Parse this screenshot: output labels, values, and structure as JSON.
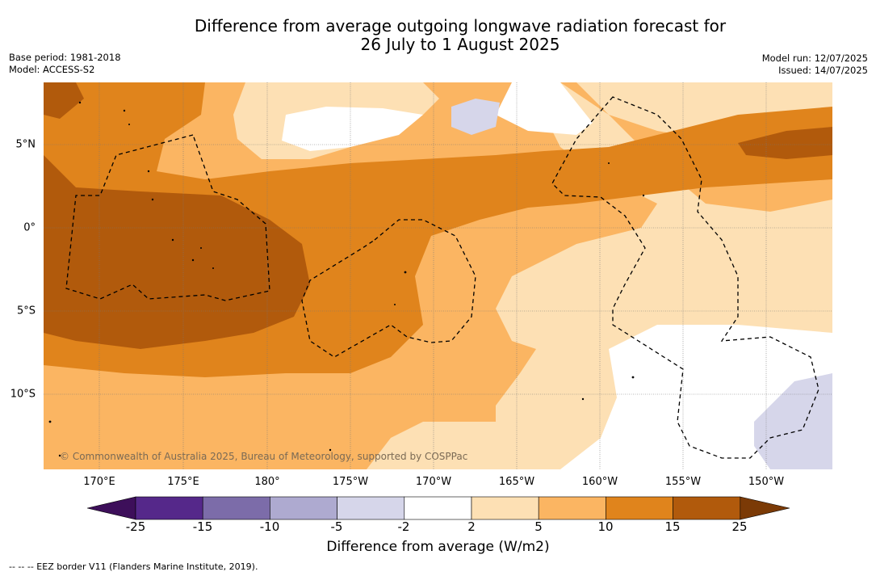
{
  "title_line1": "Difference from average outgoing longwave radiation forecast for",
  "title_line2": "26 July to 1 August 2025",
  "base_period": "Base period: 1981-2018",
  "model": "Model: ACCESS-S2",
  "model_run": "Model run: 12/07/2025",
  "issued": "Issued: 14/07/2025",
  "lon_labels": [
    "170°E",
    "175°E",
    "180°",
    "175°W",
    "170°W",
    "165°W",
    "160°W",
    "155°W",
    "150°W"
  ],
  "lat_labels": [
    "5°N",
    "0°",
    "5°S",
    "10°S"
  ],
  "colorbar": {
    "ticks": [
      "-25",
      "-15",
      "-10",
      "-5",
      "-2",
      "2",
      "5",
      "10",
      "15",
      "25"
    ],
    "colors": [
      "#3d0f5a",
      "#55288a",
      "#7c6ca9",
      "#aeaad0",
      "#d6d6ea",
      "#ffffff",
      "#fde0b4",
      "#fbb562",
      "#e0841c",
      "#b15a0c",
      "#7b3a06"
    ],
    "label": "Difference from average (W/m2)"
  },
  "copyright": "© Commonwealth of Australia 2025, Bureau of Meteorology, supported by COSPPac",
  "footnote": "--  --  -- EEZ border V11 (Flanders Marine Institute, 2019)."
}
